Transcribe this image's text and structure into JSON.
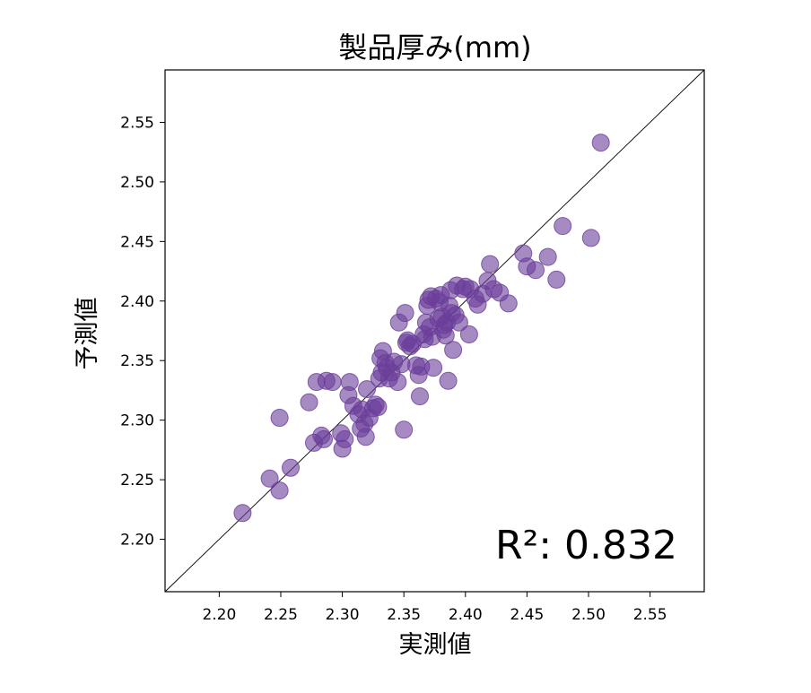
{
  "chart_data": {
    "type": "scatter",
    "title": "製品厚み(mm)",
    "xlabel": "実測値",
    "ylabel": "予測値",
    "xlim": [
      2.156,
      2.594
    ],
    "ylim": [
      2.156,
      2.594
    ],
    "xticks": [
      "2.20",
      "2.25",
      "2.30",
      "2.35",
      "2.40",
      "2.45",
      "2.50",
      "2.55"
    ],
    "yticks": [
      "2.20",
      "2.25",
      "2.30",
      "2.35",
      "2.40",
      "2.45",
      "2.50",
      "2.55"
    ],
    "annotation": "R²: 0.832",
    "grid": false,
    "reference_line": "y = x",
    "marker_color": "#6a3d9a",
    "series": [
      {
        "x": [
          2.219,
          2.241,
          2.249,
          2.249,
          2.258,
          2.273,
          2.277,
          2.279,
          2.283,
          2.285,
          2.287,
          2.292,
          2.299,
          2.3,
          2.302,
          2.305,
          2.306,
          2.309,
          2.313,
          2.315,
          2.316,
          2.318,
          2.319,
          2.32,
          2.322,
          2.325,
          2.327,
          2.329,
          2.33,
          2.331,
          2.332,
          2.333,
          2.335,
          2.336,
          2.338,
          2.34,
          2.342,
          2.345,
          2.346,
          2.348,
          2.35,
          2.351,
          2.352,
          2.353,
          2.355,
          2.357,
          2.36,
          2.362,
          2.363,
          2.364,
          2.366,
          2.367,
          2.368,
          2.369,
          2.37,
          2.371,
          2.372,
          2.373,
          2.374,
          2.376,
          2.378,
          2.379,
          2.38,
          2.381,
          2.382,
          2.383,
          2.384,
          2.385,
          2.386,
          2.387,
          2.388,
          2.389,
          2.39,
          2.392,
          2.393,
          2.395,
          2.398,
          2.4,
          2.403,
          2.404,
          2.408,
          2.41,
          2.414,
          2.418,
          2.42,
          2.423,
          2.428,
          2.435,
          2.447,
          2.45,
          2.457,
          2.467,
          2.474,
          2.479,
          2.502,
          2.51
        ],
        "y": [
          2.222,
          2.251,
          2.241,
          2.302,
          2.26,
          2.315,
          2.281,
          2.332,
          2.287,
          2.284,
          2.333,
          2.332,
          2.289,
          2.276,
          2.284,
          2.321,
          2.332,
          2.312,
          2.305,
          2.293,
          2.309,
          2.297,
          2.286,
          2.326,
          2.302,
          2.31,
          2.313,
          2.311,
          2.335,
          2.352,
          2.34,
          2.358,
          2.348,
          2.344,
          2.335,
          2.34,
          2.349,
          2.332,
          2.382,
          2.347,
          2.292,
          2.39,
          2.365,
          2.367,
          2.362,
          2.364,
          2.346,
          2.338,
          2.32,
          2.345,
          2.372,
          2.368,
          2.382,
          2.396,
          2.401,
          2.378,
          2.404,
          2.37,
          2.344,
          2.402,
          2.385,
          2.399,
          2.405,
          2.387,
          2.376,
          2.38,
          2.371,
          2.382,
          2.333,
          2.396,
          2.409,
          2.39,
          2.359,
          2.388,
          2.413,
          2.382,
          2.41,
          2.412,
          2.372,
          2.41,
          2.402,
          2.397,
          2.406,
          2.417,
          2.431,
          2.41,
          2.407,
          2.398,
          2.44,
          2.429,
          2.426,
          2.437,
          2.418,
          2.463,
          2.453,
          2.533
        ]
      }
    ]
  }
}
